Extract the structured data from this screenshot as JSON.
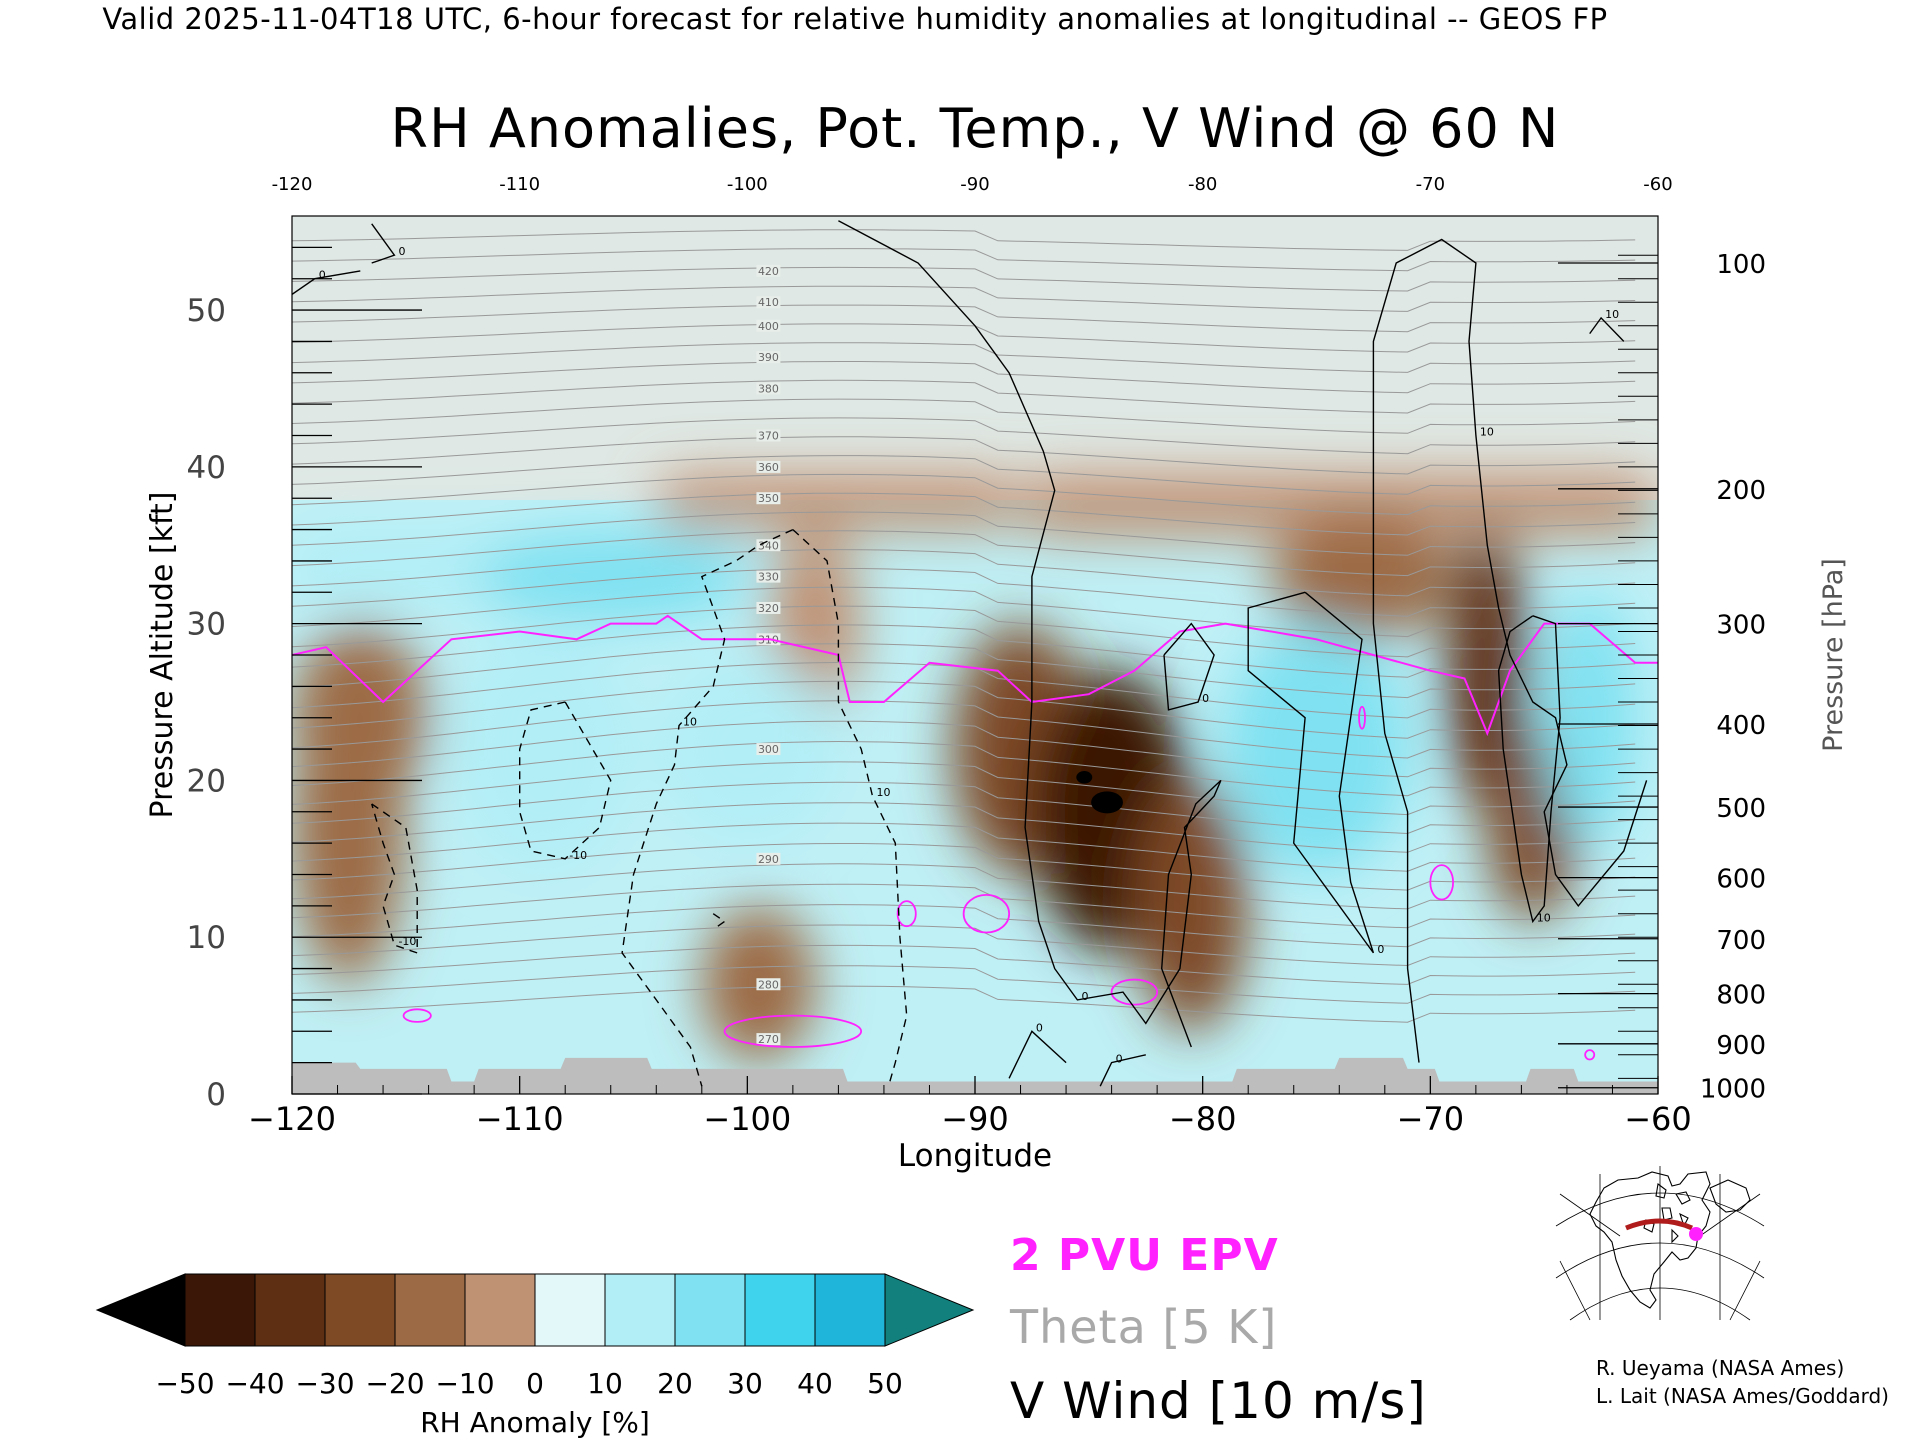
{
  "header": "Valid 2025-11-04T18 UTC, 6-hour forecast for relative humidity anomalies at longitudinal -- GEOS FP",
  "chart_data": {
    "type": "heatmap",
    "title": "RH Anomalies, Pot. Temp., V Wind @ 60 N",
    "xlabel": "Longitude",
    "ylabel_left": "Pressure Altitude [kft]",
    "ylabel_right": "Pressure [hPa]",
    "xlim": [
      -120,
      -60
    ],
    "ylim": [
      0,
      56
    ],
    "x_ticks": [
      "-120",
      "-110",
      "-100",
      "-90",
      "-80",
      "-70",
      "-60"
    ],
    "x_ticks_top": [
      "-120",
      "-110",
      "-100",
      "-90",
      "-80",
      "-70",
      "-60"
    ],
    "y_ticks": [
      "0",
      "10",
      "20",
      "30",
      "40",
      "50"
    ],
    "pressure_ticks": [
      {
        "label": "100",
        "kft": 53.0
      },
      {
        "label": "200",
        "kft": 38.6
      },
      {
        "label": "300",
        "kft": 30.0
      },
      {
        "label": "400",
        "kft": 23.6
      },
      {
        "label": "500",
        "kft": 18.3
      },
      {
        "label": "600",
        "kft": 13.8
      },
      {
        "label": "700",
        "kft": 9.9
      },
      {
        "label": "800",
        "kft": 6.4
      },
      {
        "label": "900",
        "kft": 3.2
      },
      {
        "label": "1000",
        "kft": 0.4
      }
    ],
    "colorbar": {
      "label": "RH Anomaly [%]",
      "ticks": [
        "-50",
        "-40",
        "-30",
        "-20",
        "-10",
        "0",
        "10",
        "20",
        "30",
        "40",
        "50"
      ],
      "colors": [
        "#3a1706",
        "#5e2f12",
        "#7e4a26",
        "#9c6a45",
        "#c09274",
        "#eed8cf",
        "#e3f8f9",
        "#b2eef6",
        "#7fe1f1",
        "#3fd3ee",
        "#1fb4d9"
      ],
      "under_color": "#000000",
      "over_color": "#12807c"
    },
    "legend": [
      {
        "label": "2 PVU EPV",
        "color": "#ff22ff"
      },
      {
        "label": "Theta [5 K]",
        "color": "#a9a9a9"
      },
      {
        "label": "V Wind [10 m/s]",
        "color": "#000000"
      }
    ],
    "theta_contour_labels": [
      "270",
      "280",
      "290",
      "300",
      "310",
      "320",
      "330",
      "340",
      "350",
      "360",
      "370",
      "380",
      "390",
      "400",
      "410",
      "420"
    ],
    "vwind_contour_labels": [
      "0",
      "10",
      "-10"
    ],
    "anomaly_regions": [
      {
        "lon": -117.5,
        "kft": 17,
        "rw": 2.5,
        "rh": 10,
        "value": -22
      },
      {
        "lon": -117,
        "kft": 24,
        "rw": 3,
        "rh": 6,
        "value": -18
      },
      {
        "lon": -99.5,
        "kft": 7,
        "rw": 2.5,
        "rh": 5,
        "value": -18
      },
      {
        "lon": -97,
        "kft": 30,
        "rw": 2,
        "rh": 6,
        "value": -15
      },
      {
        "lon": -88,
        "kft": 22,
        "rw": 3,
        "rh": 8,
        "value": -32
      },
      {
        "lon": -84,
        "kft": 18,
        "rw": 3.5,
        "rh": 9,
        "value": -48
      },
      {
        "lon": -80.5,
        "kft": 12,
        "rw": 2.5,
        "rh": 8,
        "value": -30
      },
      {
        "lon": -73,
        "kft": 33,
        "rw": 4,
        "rh": 4,
        "value": -22
      },
      {
        "lon": -67.5,
        "kft": 27,
        "rw": 1.8,
        "rh": 9,
        "value": -40
      },
      {
        "lon": -65.5,
        "kft": 17,
        "rw": 2,
        "rh": 6,
        "value": -32
      },
      {
        "lon": -106,
        "kft": 33,
        "rw": 6,
        "rh": 3,
        "value": 28
      },
      {
        "lon": -75,
        "kft": 22,
        "rw": 4,
        "rh": 8,
        "value": 32
      },
      {
        "lon": -63,
        "kft": 24,
        "rw": 2,
        "rh": 8,
        "value": 34
      },
      {
        "lon": -109,
        "kft": 22,
        "rw": 4,
        "rh": 8,
        "value": 18
      },
      {
        "lon": -100,
        "kft": 22,
        "rw": 4,
        "rh": 6,
        "value": 15
      }
    ],
    "epv_2pvu_line": [
      [
        -120,
        28
      ],
      [
        -118.5,
        28.5
      ],
      [
        -116,
        25
      ],
      [
        -113,
        29
      ],
      [
        -110,
        29.5
      ],
      [
        -107.5,
        29
      ],
      [
        -106,
        30
      ],
      [
        -104,
        30
      ],
      [
        -103.5,
        30.5
      ],
      [
        -102,
        29
      ],
      [
        -99,
        29
      ],
      [
        -96,
        28
      ],
      [
        -95.5,
        25
      ],
      [
        -94,
        25
      ],
      [
        -92,
        27.5
      ],
      [
        -89,
        27
      ],
      [
        -87.5,
        25
      ],
      [
        -85,
        25.5
      ],
      [
        -83,
        27
      ],
      [
        -81,
        29.5
      ],
      [
        -79,
        30
      ],
      [
        -75,
        29
      ],
      [
        -70,
        27
      ],
      [
        -68.5,
        26.5
      ],
      [
        -67.5,
        23
      ],
      [
        -66.5,
        27
      ],
      [
        -65,
        30
      ],
      [
        -63,
        30
      ],
      [
        -61,
        27.5
      ],
      [
        -60,
        27.5
      ]
    ],
    "epv_small_loops": [
      {
        "lon": -114.5,
        "kft": 5,
        "rw": 0.6,
        "rh": 0.4
      },
      {
        "lon": -98,
        "kft": 4,
        "rw": 3,
        "rh": 1
      },
      {
        "lon": -93,
        "kft": 11.5,
        "rw": 0.4,
        "rh": 0.8
      },
      {
        "lon": -89.5,
        "kft": 11.5,
        "rw": 1.0,
        "rh": 1.2
      },
      {
        "lon": -83,
        "kft": 6.5,
        "rw": 1.0,
        "rh": 0.8
      },
      {
        "lon": -69.5,
        "kft": 13.5,
        "rw": 0.5,
        "rh": 1.1
      },
      {
        "lon": -73,
        "kft": 24,
        "rw": 0.1,
        "rh": 0.7
      },
      {
        "lon": -63,
        "kft": 2.5,
        "rw": 0.2,
        "rh": 0.3
      }
    ],
    "vwind_lines": [
      {
        "style": "solid",
        "label": "0",
        "pts": [
          [
            -117,
            52.5
          ],
          [
            -119,
            52
          ],
          [
            -120,
            51
          ]
        ]
      },
      {
        "style": "solid",
        "label": "0",
        "pts": [
          [
            -116.5,
            55.5
          ],
          [
            -115.5,
            53.5
          ],
          [
            -116.5,
            53
          ]
        ]
      },
      {
        "style": "solid",
        "label": "0",
        "pts": [
          [
            -96,
            55.7
          ],
          [
            -92.5,
            53
          ],
          [
            -90,
            49
          ],
          [
            -88.5,
            46
          ],
          [
            -87,
            41
          ],
          [
            -86.5,
            38.5
          ],
          [
            -87.5,
            33
          ],
          [
            -87.5,
            25
          ],
          [
            -87.8,
            17
          ],
          [
            -87.2,
            11
          ],
          [
            -86.5,
            8
          ],
          [
            -85.5,
            6
          ],
          [
            -83.5,
            6.5
          ],
          [
            -82.5,
            4.5
          ],
          [
            -81,
            8
          ],
          [
            -80.5,
            14
          ],
          [
            -80.8,
            17
          ],
          [
            -79.5,
            19
          ],
          [
            -79.2,
            20
          ],
          [
            -80.3,
            18.5
          ],
          [
            -81.5,
            14
          ],
          [
            -81.8,
            8
          ],
          [
            -80.5,
            3
          ]
        ]
      },
      {
        "style": "solid",
        "label": "0",
        "pts": [
          [
            -88.5,
            1
          ],
          [
            -87.5,
            4
          ],
          [
            -86,
            2
          ]
        ]
      },
      {
        "style": "solid",
        "label": "0",
        "pts": [
          [
            -84.5,
            0.5
          ],
          [
            -84,
            2
          ],
          [
            -82.5,
            2.5
          ]
        ]
      },
      {
        "style": "solid",
        "label": "0",
        "pts": [
          [
            -81.7,
            28
          ],
          [
            -80.5,
            30
          ],
          [
            -79.5,
            28
          ],
          [
            -80.2,
            25
          ],
          [
            -81.5,
            24.5
          ],
          [
            -81.7,
            28
          ]
        ]
      },
      {
        "style": "solid",
        "label": "0",
        "pts": [
          [
            -75.5,
            32
          ],
          [
            -78,
            31
          ],
          [
            -78,
            27
          ],
          [
            -75.5,
            24
          ],
          [
            -76,
            16
          ],
          [
            -72.5,
            9
          ],
          [
            -73.5,
            13.5
          ],
          [
            -74,
            19
          ],
          [
            -73,
            29
          ],
          [
            -75.5,
            32
          ]
        ]
      },
      {
        "style": "solid",
        "label": "10",
        "pts": [
          [
            -70.5,
            2
          ],
          [
            -71,
            8
          ],
          [
            -71,
            18
          ],
          [
            -72,
            23
          ],
          [
            -72.5,
            30
          ],
          [
            -72.5,
            40
          ],
          [
            -72.5,
            48
          ],
          [
            -71.5,
            53
          ],
          [
            -69.5,
            54.5
          ],
          [
            -68,
            53
          ],
          [
            -68.3,
            48
          ],
          [
            -68,
            42
          ],
          [
            -67.5,
            35
          ],
          [
            -67,
            31
          ],
          [
            -66.5,
            28
          ],
          [
            -65.5,
            25
          ],
          [
            -64.5,
            24
          ],
          [
            -64,
            21
          ],
          [
            -65,
            18
          ],
          [
            -64.5,
            14
          ],
          [
            -63.5,
            12
          ],
          [
            -61.5,
            15.5
          ],
          [
            -60.5,
            20
          ]
        ]
      },
      {
        "style": "solid",
        "label": "10",
        "pts": [
          [
            -65.5,
            30.5
          ],
          [
            -66.5,
            29.5
          ],
          [
            -67,
            27
          ],
          [
            -66.8,
            22
          ],
          [
            -66,
            14
          ],
          [
            -65.5,
            11
          ],
          [
            -65,
            12
          ],
          [
            -64.7,
            18
          ],
          [
            -64.3,
            24
          ],
          [
            -64.5,
            30
          ],
          [
            -65.5,
            30.5
          ]
        ]
      },
      {
        "style": "solid",
        "label": "10",
        "pts": [
          [
            -61.5,
            48
          ],
          [
            -62.5,
            49.5
          ],
          [
            -63,
            48.5
          ]
        ]
      },
      {
        "style": "dashed",
        "label": "10",
        "pts": [
          [
            -98,
            36
          ],
          [
            -99.5,
            35
          ],
          [
            -100.5,
            34
          ],
          [
            -102,
            33
          ],
          [
            -101.5,
            31
          ],
          [
            -101,
            29
          ],
          [
            -101.5,
            26
          ],
          [
            -103,
            23.5
          ],
          [
            -103.2,
            21
          ],
          [
            -104,
            18.5
          ],
          [
            -105,
            14
          ],
          [
            -105.5,
            9
          ],
          [
            -104,
            6
          ],
          [
            -102.5,
            3
          ],
          [
            -102,
            0.5
          ]
        ]
      },
      {
        "style": "dashed",
        "label": "10",
        "pts": [
          [
            -98,
            36
          ],
          [
            -96.5,
            34
          ],
          [
            -96,
            30
          ],
          [
            -96,
            25
          ],
          [
            -95,
            22
          ],
          [
            -94.5,
            19
          ],
          [
            -93.5,
            16
          ],
          [
            -93.3,
            10
          ],
          [
            -93,
            5
          ],
          [
            -93.5,
            2
          ],
          [
            -93.8,
            0.5
          ]
        ]
      },
      {
        "style": "dashed",
        "label": "-10",
        "pts": [
          [
            -108,
            25
          ],
          [
            -109.5,
            24.5
          ],
          [
            -110,
            22
          ],
          [
            -110,
            18
          ],
          [
            -109.5,
            15.5
          ],
          [
            -108,
            15
          ],
          [
            -106.5,
            17
          ],
          [
            -106,
            20
          ],
          [
            -107,
            22.5
          ],
          [
            -108,
            25
          ]
        ]
      },
      {
        "style": "dashed",
        "label": "-10",
        "pts": [
          [
            -116.5,
            18.5
          ],
          [
            -115,
            17
          ],
          [
            -114.5,
            13
          ],
          [
            -114.5,
            9
          ],
          [
            -115.5,
            9.5
          ],
          [
            -116,
            12
          ],
          [
            -115.5,
            14
          ],
          [
            -116,
            16
          ],
          [
            -116.5,
            18.5
          ]
        ]
      },
      {
        "style": "dashed",
        "label": "",
        "pts": [
          [
            -101.5,
            11.5
          ],
          [
            -101,
            11
          ],
          [
            -101.5,
            10.5
          ]
        ]
      }
    ],
    "topography": [
      [
        -120,
        2
      ],
      [
        -117.2,
        2
      ],
      [
        -117,
        1.6
      ],
      [
        -113.2,
        1.6
      ],
      [
        -113,
        0.8
      ],
      [
        -112,
        0.8
      ],
      [
        -111.8,
        1.6
      ],
      [
        -108.2,
        1.6
      ],
      [
        -108,
        2.3
      ],
      [
        -104.4,
        2.3
      ],
      [
        -104.2,
        1.6
      ],
      [
        -95.8,
        1.6
      ],
      [
        -95.6,
        0.8
      ],
      [
        -78.7,
        0.8
      ],
      [
        -78.5,
        1.6
      ],
      [
        -74.2,
        1.6
      ],
      [
        -74,
        2.3
      ],
      [
        -71.2,
        2.3
      ],
      [
        -71,
        1.6
      ],
      [
        -69.8,
        1.6
      ],
      [
        -69.6,
        0.8
      ],
      [
        -65.8,
        0.8
      ],
      [
        -65.6,
        1.6
      ],
      [
        -63.7,
        1.6
      ],
      [
        -63.5,
        0.8
      ],
      [
        -60,
        0.8
      ]
    ]
  },
  "credits": [
    "R. Ueyama (NASA Ames)",
    "L. Lait (NASA Ames/Goddard)"
  ]
}
